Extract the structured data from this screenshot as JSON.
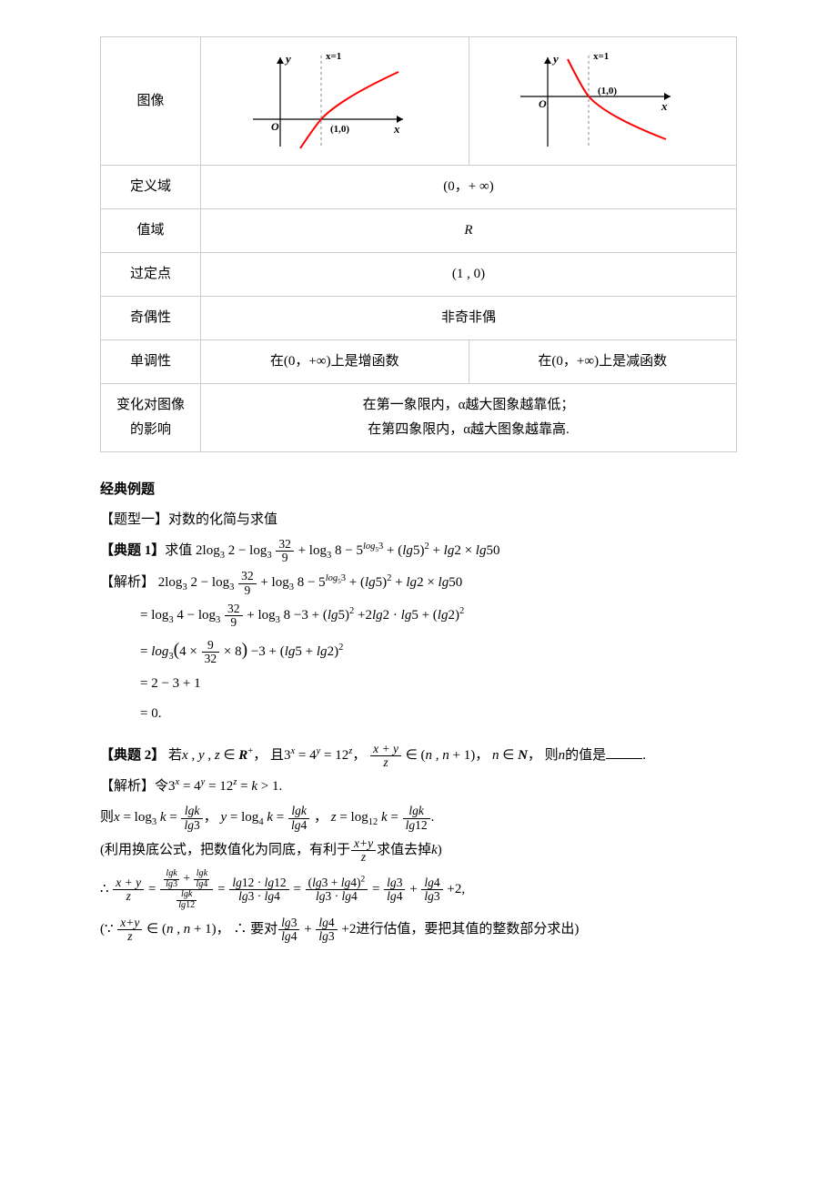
{
  "table": {
    "rows": {
      "image_label": "图像",
      "domain_label": "定义域",
      "domain_value": "(0，+ ∞)",
      "range_label": "值域",
      "range_value": "R",
      "fixed_label": "过定点",
      "fixed_value": "(1 , 0)",
      "parity_label": "奇偶性",
      "parity_value": "非奇非偶",
      "mono_label": "单调性",
      "mono_left": "在(0，+∞)上是增函数",
      "mono_right": "在(0，+∞)上是减函数",
      "effect_label_line1": "变化对图像",
      "effect_label_line2": "的影响",
      "effect_line1": "在第一象限内，α越大图象越靠低；",
      "effect_line2": "在第四象限内，α越大图象越靠高."
    },
    "graph_labels": {
      "y": "y",
      "x": "x",
      "O": "O",
      "point": "(1,0)",
      "asym": "x=1"
    },
    "graph_colors": {
      "axis": "#000000",
      "curve": "#ff0000",
      "dash": "#888888",
      "text": "#000000"
    }
  },
  "headings": {
    "classic": "经典例题",
    "type1": "【题型一】对数的化简与求值"
  },
  "ex1": {
    "title_prefix": "【典题 1】",
    "title_text": "求值 ",
    "expr": "2log<sub>3</sub> 2 − log<sub>3</sub> <span class='frac'><span class='n'>32</span><span class='d'>9</span></span> + log<sub>3</sub> 8 − 5<sup><span class='math'>log</span><sub>5</sub>3</sup> + (<span class='math'>lg</span>5)<sup>2</sup> + <span class='math'>lg</span>2 × <span class='math'>lg</span>50",
    "solution_prefix": "【解析】",
    "line0": " 2log<sub>3</sub> 2 − log<sub>3</sub> <span class='frac'><span class='n'>32</span><span class='d'>9</span></span> + log<sub>3</sub> 8 − 5<sup><span class='math'>log</span><sub>5</sub>3</sup> + (<span class='math'>lg</span>5)<sup>2</sup> + <span class='math'>lg</span>2 × <span class='math'>lg</span>50",
    "line1": "= log<sub>3</sub> 4 − log<sub>3</sub> <span class='frac'><span class='n'>32</span><span class='d'>9</span></span> + log<sub>3</sub> 8 −3 + (<span class='math'>lg</span>5)<sup>2</sup> +2<span class='math'>lg</span>2 · <span class='math'>lg</span>5 + (<span class='math'>lg</span>2)<sup>2</sup>",
    "line2": "= <span class='math'>log</span><sub>3</sub><span style='font-size:1.3em;'>(</span>4 × <span class='frac'><span class='n'>9</span><span class='d'>32</span></span> × 8<span style='font-size:1.3em;'>)</span> −3 + (<span class='math'>lg</span>5 + <span class='math'>lg</span>2)<sup>2</sup>",
    "line3": "= 2 − 3 + 1",
    "line4": "= 0."
  },
  "ex2": {
    "title_prefix": "【典题 2】",
    "title_html": " 若<span class='math'>x , y , z</span> ∈ <b><span class='math'>R</span></b><sup>+</sup>， 且3<sup><span class='math'>x</span></sup> = 4<sup><span class='math'>y</span></sup> = 12<sup><span class='math'>z</span></sup>， <span class='frac'><span class='n'><span class='math'>x + y</span></span><span class='d'><span class='math'>z</span></span></span> ∈ (<span class='math'>n , n</span> + 1)， <span class='math'>n</span> ∈ <b><span class='math'>N</span></b>， 则<span class='math'>n</span>的值是<span class='blank'></span>.",
    "solution_prefix": "【解析】",
    "sol_line1": "令3<sup><span class='math'>x</span></sup> = 4<sup><span class='math'>y</span></sup> = 12<sup><span class='math'>z</span></sup> = <span class='math'>k</span> > 1.",
    "sol_line2": "则<span class='math'>x</span> = log<sub>3</sub> <span class='math'>k</span> = <span class='frac'><span class='n'><span class='math'>lgk</span></span><span class='d'><span class='math'>lg</span>3</span></span>，  <span class='math'>y</span> = log<sub>4</sub> <span class='math'>k</span> = <span class='frac'><span class='n'><span class='math'>lgk</span></span><span class='d'><span class='math'>lg</span>4</span></span> ，  <span class='math'>z</span> = log<sub>12</sub> <span class='math'>k</span> = <span class='frac'><span class='n'><span class='math'>lgk</span></span><span class='d'><span class='math'>lg</span>12</span></span>.",
    "sol_line3": "(利用换底公式，把数值化为同底，有利于<span class='frac'><span class='n'><span class='math'>x+y</span></span><span class='d'><span class='math'>z</span></span></span>求值去掉<span class='math'>k</span>)",
    "sol_line4": "∴ <span class='frac'><span class='n'><span class='math'>x + y</span></span><span class='d'><span class='math'>z</span></span></span> = <span class='frac'><span class='n'><span class='sfrac'><span class='n'><span class='math'>lgk</span></span><span class='d'><span class='math'>lg</span>3</span></span> + <span class='sfrac'><span class='n'><span class='math'>lgk</span></span><span class='d'><span class='math'>lg</span>4</span></span></span><span class='d'><span class='sfrac'><span class='n'><span class='math'>lgk</span></span><span class='d'><span class='math'>lg</span>12</span></span></span></span> = <span class='frac'><span class='n'><span class='math'>lg</span>12 · <span class='math'>lg</span>12</span><span class='d'><span class='math'>lg</span>3 · <span class='math'>lg</span>4</span></span> = <span class='frac'><span class='n'>(<span class='math'>lg</span>3 + <span class='math'>lg</span>4)<sup>2</sup></span><span class='d'><span class='math'>lg</span>3 · <span class='math'>lg</span>4</span></span> = <span class='frac'><span class='n'><span class='math'>lg</span>3</span><span class='d'><span class='math'>lg</span>4</span></span> + <span class='frac'><span class='n'><span class='math'>lg</span>4</span><span class='d'><span class='math'>lg</span>3</span></span> +2,",
    "sol_line5": "(∵ <span class='frac'><span class='n'><span class='math'>x+y</span></span><span class='d'><span class='math'>z</span></span></span> ∈ (<span class='math'>n , n</span> + 1)， ∴ 要对<span class='frac'><span class='n'><span class='math'>lg</span>3</span><span class='d'><span class='math'>lg</span>4</span></span> + <span class='frac'><span class='n'><span class='math'>lg</span>4</span><span class='d'><span class='math'>lg</span>3</span></span> +2进行估值，要把其值的整数部分求出)"
  }
}
